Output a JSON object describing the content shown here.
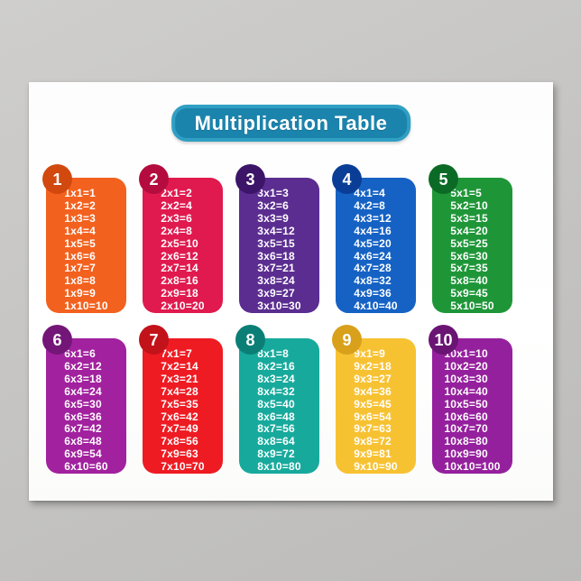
{
  "poster": {
    "title": "Multiplication Table"
  },
  "theme": {
    "wall_gradient_start": "#cfcecc",
    "wall_gradient_end": "#bcbbb9",
    "poster_background": "#ffffff",
    "title_fill": "#1b84ad",
    "title_border": "#2f9fc3",
    "title_text_color": "#ffffff",
    "fact_text_color": "#ffffff"
  },
  "tables": [
    {
      "number": "1",
      "card_color": "#F3611E",
      "badge_color": "#D1490F",
      "facts": [
        "1x1=1",
        "1x2=2",
        "1x3=3",
        "1x4=4",
        "1x5=5",
        "1x6=6",
        "1x7=7",
        "1x8=8",
        "1x9=9",
        "1x10=10"
      ]
    },
    {
      "number": "2",
      "card_color": "#E0194E",
      "badge_color": "#B40C3F",
      "facts": [
        "2x1=2",
        "2x2=4",
        "2x3=6",
        "2x4=8",
        "2x5=10",
        "2x6=12",
        "2x7=14",
        "2x8=16",
        "2x9=18",
        "2x10=20"
      ]
    },
    {
      "number": "3",
      "card_color": "#5B2D90",
      "badge_color": "#3C1568",
      "facts": [
        "3x1=3",
        "3x2=6",
        "3x3=9",
        "3x4=12",
        "3x5=15",
        "3x6=18",
        "3x7=21",
        "3x8=24",
        "3x9=27",
        "3x10=30"
      ]
    },
    {
      "number": "4",
      "card_color": "#1562C4",
      "badge_color": "#0A3E96",
      "facts": [
        "4x1=4",
        "4x2=8",
        "4x3=12",
        "4x4=16",
        "4x5=20",
        "4x6=24",
        "4x7=28",
        "4x8=32",
        "4x9=36",
        "4x10=40"
      ]
    },
    {
      "number": "5",
      "card_color": "#1E9638",
      "badge_color": "#0B6B26",
      "facts": [
        "5x1=5",
        "5x2=10",
        "5x3=15",
        "5x4=20",
        "5x5=25",
        "5x6=30",
        "5x7=35",
        "5x8=40",
        "5x9=45",
        "5x10=50"
      ]
    },
    {
      "number": "6",
      "card_color": "#A1219E",
      "badge_color": "#741678",
      "facts": [
        "6x1=6",
        "6x2=12",
        "6x3=18",
        "6x4=24",
        "6x5=30",
        "6x6=36",
        "6x7=42",
        "6x8=48",
        "6x9=54",
        "6x10=60"
      ]
    },
    {
      "number": "7",
      "card_color": "#EE1B22",
      "badge_color": "#C2121A",
      "facts": [
        "7x1=7",
        "7x2=14",
        "7x3=21",
        "7x4=28",
        "7x5=35",
        "7x6=42",
        "7x7=49",
        "7x8=56",
        "7x9=63",
        "7x10=70"
      ]
    },
    {
      "number": "8",
      "card_color": "#17AA9C",
      "badge_color": "#0B7F76",
      "facts": [
        "8x1=8",
        "8x2=16",
        "8x3=24",
        "8x4=32",
        "8x5=40",
        "8x6=48",
        "8x7=56",
        "8x8=64",
        "8x9=72",
        "8x10=80"
      ]
    },
    {
      "number": "9",
      "card_color": "#F7C232",
      "badge_color": "#D8A01B",
      "facts": [
        "9x1=9",
        "9x2=18",
        "9x3=27",
        "9x4=36",
        "9x5=45",
        "9x6=54",
        "9x7=63",
        "9x8=72",
        "9x9=81",
        "9x10=90"
      ]
    },
    {
      "number": "10",
      "card_color": "#95209D",
      "badge_color": "#6A1474",
      "facts": [
        "10x1=10",
        "10x2=20",
        "10x3=30",
        "10x4=40",
        "10x5=50",
        "10x6=60",
        "10x7=70",
        "10x8=80",
        "10x9=90",
        "10x10=100"
      ]
    }
  ]
}
